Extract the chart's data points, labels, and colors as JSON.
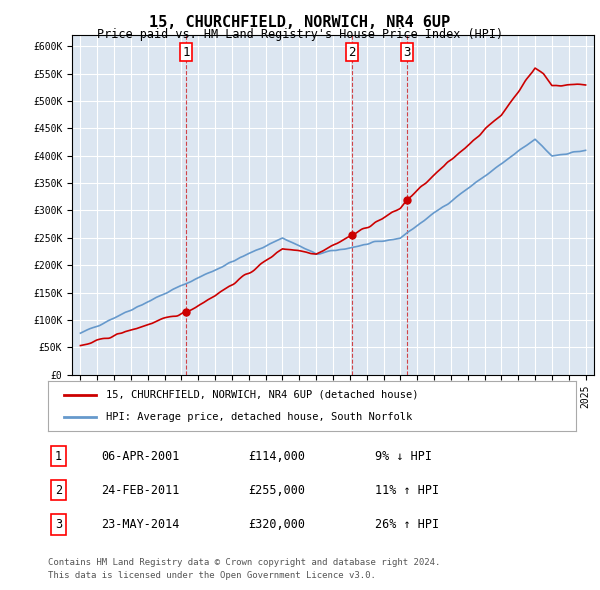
{
  "title": "15, CHURCHFIELD, NORWICH, NR4 6UP",
  "subtitle": "Price paid vs. HM Land Registry's House Price Index (HPI)",
  "legend_line1": "15, CHURCHFIELD, NORWICH, NR4 6UP (detached house)",
  "legend_line2": "HPI: Average price, detached house, South Norfolk",
  "footer1": "Contains HM Land Registry data © Crown copyright and database right 2024.",
  "footer2": "This data is licensed under the Open Government Licence v3.0.",
  "sales": [
    {
      "num": 1,
      "date": "06-APR-2001",
      "price": "£114,000",
      "pct": "9% ↓ HPI",
      "year": 2001.26
    },
    {
      "num": 2,
      "date": "24-FEB-2011",
      "price": "£255,000",
      "pct": "11% ↑ HPI",
      "year": 2011.13
    },
    {
      "num": 3,
      "date": "23-MAY-2014",
      "price": "£320,000",
      "pct": "26% ↑ HPI",
      "year": 2014.39
    }
  ],
  "sale_prices": [
    114000,
    255000,
    320000
  ],
  "bg_color": "#dce6f1",
  "plot_bg": "#dce6f1",
  "red_color": "#cc0000",
  "blue_color": "#6699cc",
  "ylim": [
    0,
    620000
  ],
  "yticks": [
    0,
    50000,
    100000,
    150000,
    200000,
    250000,
    300000,
    350000,
    400000,
    450000,
    500000,
    550000,
    600000
  ]
}
